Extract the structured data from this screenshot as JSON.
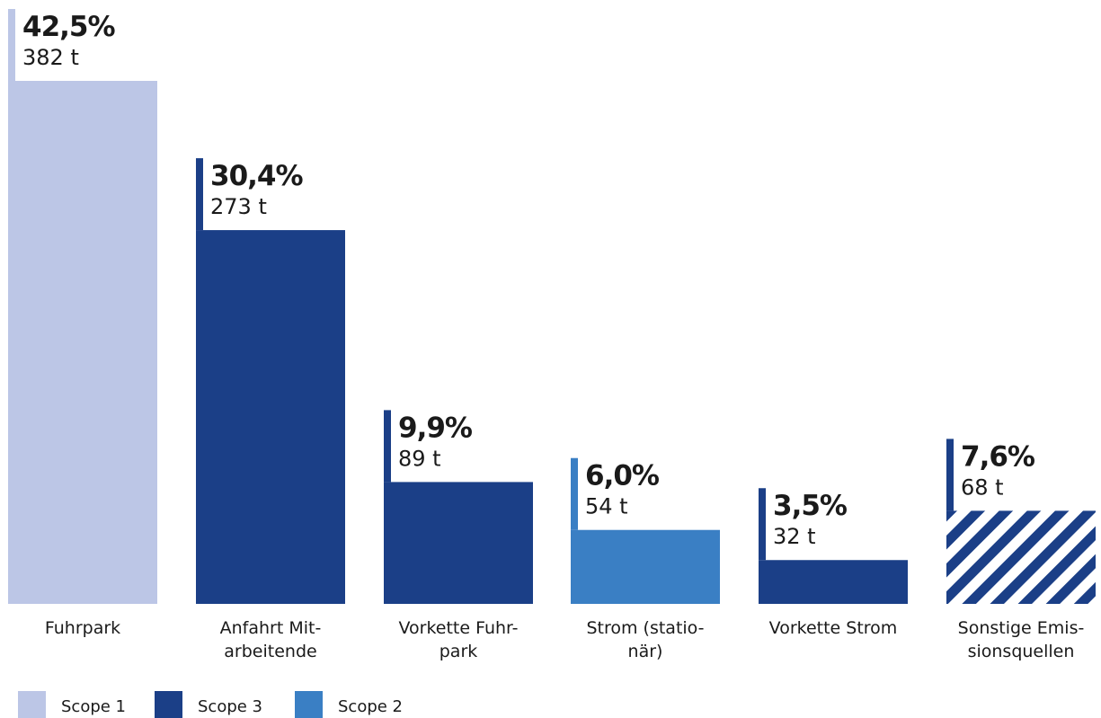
{
  "chart_data": {
    "type": "bar",
    "categories": [
      [
        "Fuhrpark"
      ],
      [
        "Anfahrt Mit-",
        "arbeitende"
      ],
      [
        "Vorkette Fuhr-",
        "park"
      ],
      [
        "Strom (statio-",
        "när)"
      ],
      [
        "Vorkette Strom"
      ],
      [
        "Sonstige Emis-",
        "sionsquellen"
      ]
    ],
    "values_t": [
      382,
      273,
      89,
      54,
      32,
      68
    ],
    "value_labels": [
      "382 t",
      "273 t",
      "89 t",
      "54 t",
      "32 t",
      "68 t"
    ],
    "share_pct": [
      42.5,
      30.4,
      9.9,
      6.0,
      3.5,
      7.6
    ],
    "share_labels": [
      "42,5%",
      "30,4%",
      "9,9%",
      "6,0%",
      "3,5%",
      "7,6%"
    ],
    "scope": [
      "Scope 1",
      "Scope 3",
      "Scope 3",
      "Scope 2",
      "Scope 3",
      "Scope 3"
    ],
    "hatched": [
      false,
      false,
      false,
      false,
      false,
      true
    ],
    "ylim": [
      0,
      382
    ],
    "grid": false,
    "legend_position": "bottom-left"
  },
  "legend": [
    {
      "label": "Scope 1",
      "color": "#bcc6e6"
    },
    {
      "label": "Scope 3",
      "color": "#1b3f87"
    },
    {
      "label": "Scope 2",
      "color": "#3a7fc4"
    }
  ],
  "colors": {
    "Scope 1": "#bcc6e6",
    "Scope 3": "#1b3f87",
    "Scope 2": "#3a7fc4",
    "text": "#1a1a1a"
  }
}
